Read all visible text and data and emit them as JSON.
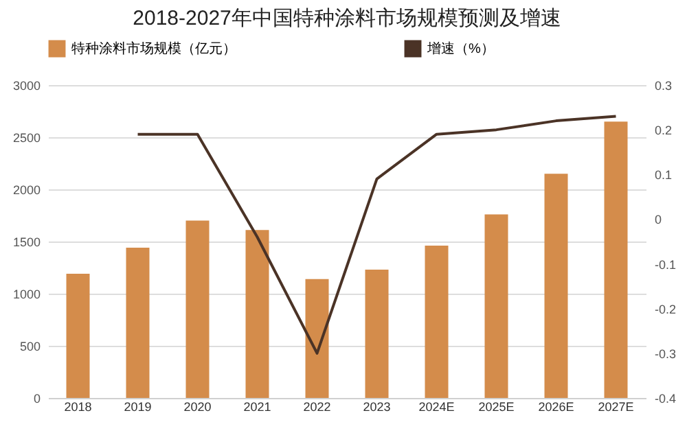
{
  "chart_data": {
    "type": "bar",
    "title": "2018-2027年中国特种涂料市场规模预测及增速",
    "categories": [
      "2018",
      "2019",
      "2020",
      "2021",
      "2022",
      "2023",
      "2024E",
      "2025E",
      "2026E",
      "2027E"
    ],
    "series": [
      {
        "name": "特种涂料市场规模（亿元）",
        "color": "#d48c4b",
        "values": [
          1190,
          1440,
          1700,
          1610,
          1140,
          1230,
          1460,
          1760,
          2150,
          2650
        ]
      },
      {
        "name": "增速（%）",
        "type": "line",
        "axis": "y2",
        "color": "#4b3326",
        "values": [
          null,
          0.19,
          0.19,
          -0.04,
          -0.3,
          0.09,
          0.19,
          0.2,
          0.22,
          0.23
        ]
      }
    ],
    "ylim": [
      0,
      3000
    ],
    "yticks": [
      0,
      500,
      1000,
      1500,
      2000,
      2500,
      3000
    ],
    "y2lim": [
      -0.4,
      0.3
    ],
    "y2ticks": [
      -0.4,
      -0.3,
      -0.2,
      -0.1,
      0,
      0.1,
      0.2,
      0.3
    ],
    "grid": "y",
    "legend": "top",
    "marker": "none",
    "line_style": "solid"
  }
}
